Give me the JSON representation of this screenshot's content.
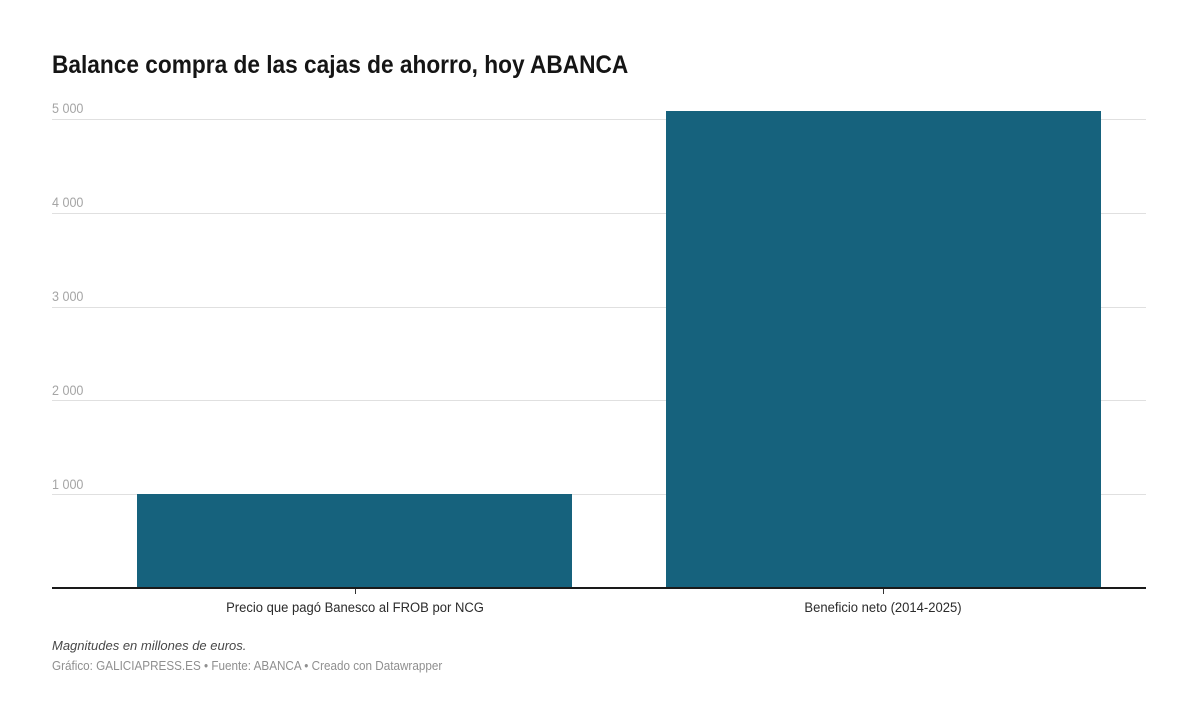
{
  "chart": {
    "title": "Balance compra de las cajas de ahorro, hoy ABANCA",
    "notes": "Magnitudes en millones de euros.",
    "byline": {
      "graphic_label": "Gráfico: ",
      "graphic_credit": "GALICIAPRESS.ES",
      "separator_1": " • ",
      "source_label": "Fuente: ",
      "source_value": "ABANCA",
      "separator_2": " • ",
      "tool_credit": "Creado con Datawrapper"
    }
  },
  "chart_data": {
    "type": "bar",
    "title": "Balance compra de las cajas de ahorro, hoy ABANCA",
    "categories": [
      "Precio que pagó Banesco al FROB por NCG",
      "Beneficio neto (2014-2025)"
    ],
    "values": [
      1003,
      5080
    ],
    "xlabel": "",
    "ylabel": "",
    "ylim": [
      0,
      5000
    ],
    "yticks": [
      1000,
      2000,
      3000,
      4000,
      5000
    ],
    "ytick_labels": [
      "1 000",
      "2 000",
      "3 000",
      "4 000",
      "5 000"
    ],
    "grid": true,
    "legend": false,
    "bar_color": "#16627d",
    "unit": "millones de euros"
  }
}
